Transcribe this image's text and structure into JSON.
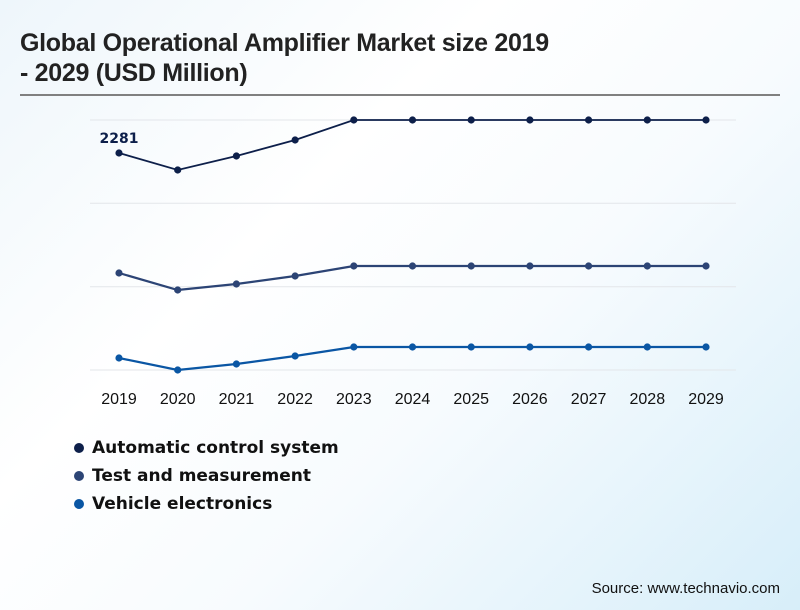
{
  "title": "Global Operational Amplifier Market size 2019 - 2029 (USD Million)",
  "title_lines": [
    "Global Operational Amplifier Market size 2019",
    "- 2029 (USD Million)"
  ],
  "source": "Source: www.technavio.com",
  "chart_data": {
    "type": "line",
    "title": "Global Operational Amplifier Market size 2019 - 2029 (USD Million)",
    "xlabel": "",
    "ylabel": "",
    "x": [
      "2019",
      "2020",
      "2021",
      "2022",
      "2023",
      "2024",
      "2025",
      "2026",
      "2027",
      "2028",
      "2029"
    ],
    "y_units": "relative (no y-axis shown; values are relative line heights, 0-100 scale of the gridded area)",
    "ylim": [
      0,
      100
    ],
    "gridlines": [
      0,
      33.3,
      66.7,
      100
    ],
    "grid": true,
    "legend_position": "bottom-left",
    "series": [
      {
        "name": "Automatic control system",
        "color": "#0d1f4a",
        "values": [
          86.8,
          80,
          85.6,
          92,
          100,
          100,
          100,
          100,
          100,
          100,
          100
        ],
        "labels": [
          "2281",
          "",
          "",
          "",
          "",
          "",
          "",
          "",
          "",
          "",
          ""
        ]
      },
      {
        "name": "Test and measurement",
        "color": "#2c4475",
        "values": [
          38.8,
          32,
          34.4,
          37.6,
          41.6,
          41.6,
          41.6,
          41.6,
          41.6,
          41.6,
          41.6
        ],
        "labels": [
          "",
          "",
          "",
          "",
          "",
          "",
          "",
          "",
          "",
          "",
          ""
        ]
      },
      {
        "name": "Vehicle electronics",
        "color": "#0a56a4",
        "values": [
          4.8,
          0,
          2.4,
          5.6,
          9.2,
          9.2,
          9.2,
          9.2,
          9.2,
          9.2,
          9.2
        ],
        "labels": [
          "",
          "",
          "",
          "",
          "",
          "",
          "",
          "",
          "",
          "",
          ""
        ]
      }
    ]
  }
}
